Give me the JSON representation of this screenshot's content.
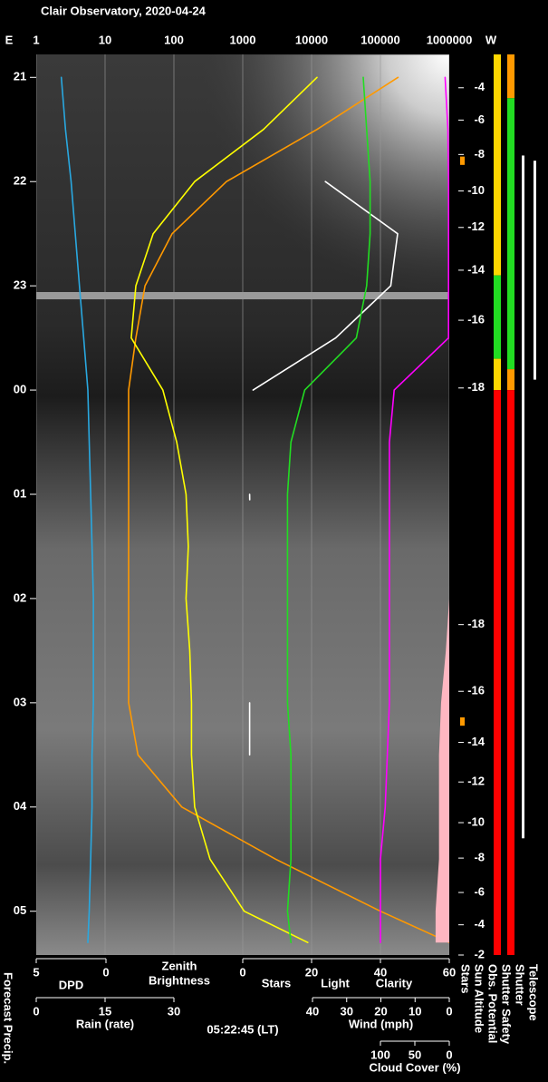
{
  "chart_data": {
    "type": "keogram",
    "title": "Clair Observatory, 2020-04-24",
    "time_label": "05:22:45 (LT)",
    "east_label": "E",
    "west_label": "W",
    "ylim": [
      20.78,
      29.42
    ],
    "yticks": [
      21,
      22,
      23,
      {
        "value": 24,
        "label": "00"
      },
      {
        "value": 25,
        "label": "01"
      },
      {
        "value": 26,
        "label": "02"
      },
      {
        "value": 27,
        "label": "03"
      },
      {
        "value": 28,
        "label": "04"
      },
      {
        "value": 29,
        "label": "05"
      }
    ],
    "x": [
      21,
      21.5,
      22,
      22.5,
      23,
      23.5,
      24,
      24.5,
      25,
      25.5,
      26,
      26.5,
      27,
      27.5,
      28,
      28.5,
      29,
      29.3
    ],
    "axes": {
      "brightness": {
        "scale": "log",
        "xlim": [
          1,
          1000000
        ],
        "xticks": [
          1,
          10,
          100,
          1000,
          10000,
          100000,
          1000000
        ],
        "grid": true,
        "label": [
          "Zenith",
          "Brightness"
        ],
        "color": "#ffff00"
      },
      "dpd": {
        "xlim": [
          5,
          0
        ],
        "xticks": [
          5,
          0
        ],
        "label": "DPD",
        "color": "#29a8e0"
      },
      "stars": {
        "xlim": [
          0,
          60
        ],
        "xticks": [
          0,
          20,
          40,
          60
        ],
        "labels": [
          {
            "text": "Stars",
            "color": "#ffffff"
          },
          {
            "text": "Light",
            "color": "#ffff00"
          },
          {
            "text": "Clarity",
            "color": "#22dd22"
          }
        ]
      },
      "rain": {
        "xlim": [
          0,
          30
        ],
        "xticks": [
          0,
          15,
          30
        ],
        "label": "Rain (rate)",
        "color": "#29c8e8"
      },
      "wind": {
        "xlim": [
          40,
          0
        ],
        "xticks": [
          40,
          30,
          20,
          10,
          0
        ],
        "label": "Wind (mph)",
        "color": "#ffb6c1"
      },
      "cloud": {
        "xlim": [
          100,
          0
        ],
        "xticks": [
          100,
          50,
          0
        ],
        "label": "Cloud Cover (%)",
        "color": "#ff00ff"
      }
    },
    "series": [
      {
        "axis": "dpd",
        "color": "#29a8e0",
        "values": [
          3.2,
          2.9,
          2.5,
          2.2,
          1.9,
          1.6,
          1.3,
          1.2,
          1.1,
          1.0,
          0.9,
          0.9,
          0.9,
          1.0,
          1.0,
          1.1,
          1.2,
          1.3
        ]
      },
      {
        "axis": "brightness",
        "color": "#ff9900",
        "values": [
          180000,
          12000,
          580,
          94,
          38,
          28,
          22,
          22,
          22,
          22,
          22,
          22,
          22,
          30,
          130,
          3000,
          100000,
          1000000
        ]
      },
      {
        "axis": "brightness",
        "color": "#ffff00",
        "values": [
          12000,
          2000,
          200,
          50,
          28,
          24,
          69,
          110,
          150,
          162,
          150,
          170,
          180,
          180,
          200,
          335,
          1050,
          8800
        ]
      },
      {
        "axis": "stars",
        "color": "#ffffff",
        "values": [
          null,
          null,
          24,
          45,
          43,
          27,
          3,
          null,
          2,
          null,
          null,
          null,
          2,
          2,
          null,
          null,
          null,
          null
        ]
      },
      {
        "axis": "stars",
        "color": "#22dd22",
        "values": [
          35,
          36,
          37,
          37,
          36,
          33,
          18,
          14,
          13,
          13,
          13,
          13,
          13,
          14,
          14,
          14,
          13,
          14
        ]
      },
      {
        "axis": "cloud",
        "color": "#ff00ff",
        "values": [
          6,
          2,
          1,
          1,
          1,
          1,
          80,
          87,
          87,
          87,
          87,
          87,
          87,
          90,
          93,
          100,
          100,
          100
        ]
      },
      {
        "axis": "wind",
        "color": "#ffb6c1",
        "area": true,
        "values": [
          0,
          0,
          0,
          0,
          0,
          0,
          0,
          0,
          0,
          0,
          0,
          1,
          2.4,
          3,
          3,
          3,
          4,
          4
        ]
      }
    ],
    "sun_altitude": {
      "label": "Sun Altitude",
      "times": [
        21.1,
        21.41,
        21.74,
        22.09,
        22.44,
        22.85,
        23.33,
        23.98,
        26.25,
        26.89,
        27.38,
        27.76,
        28.15,
        28.49,
        28.82,
        29.13,
        29.42
      ],
      "values": [
        -4,
        -6,
        -8,
        -10,
        -12,
        -14,
        -16,
        -18,
        -18,
        -16,
        -14,
        -12,
        -10,
        -8,
        -6,
        -4,
        -2
      ]
    },
    "precip_label": "Forecast Precip.",
    "status": [
      {
        "label": "Stars",
        "segments": [
          {
            "from": 21.76,
            "to": 21.84,
            "color": "#ff9900"
          },
          {
            "from": 27.14,
            "to": 27.22,
            "color": "#ff9900"
          }
        ]
      },
      {
        "label": "Obs. Potential",
        "segments": [
          {
            "from": 20.78,
            "to": 22.9,
            "color": "#ffd700"
          },
          {
            "from": 22.9,
            "to": 23.7,
            "color": "#22dd22"
          },
          {
            "from": 23.7,
            "to": 24.0,
            "color": "#ffd700"
          },
          {
            "from": 24.0,
            "to": 29.42,
            "color": "#ff0000"
          }
        ]
      },
      {
        "label": "Shutter Safety",
        "segments": [
          {
            "from": 20.78,
            "to": 21.2,
            "color": "#ff9900"
          },
          {
            "from": 21.2,
            "to": 23.8,
            "color": "#22dd22"
          },
          {
            "from": 23.8,
            "to": 24.0,
            "color": "#ff9900"
          },
          {
            "from": 24.0,
            "to": 29.42,
            "color": "#ff0000"
          }
        ]
      },
      {
        "label": "Shutter",
        "segments": [
          {
            "from": 21.75,
            "to": 28.3,
            "color": "#ffffff"
          }
        ]
      },
      {
        "label": "Telescope",
        "segments": [
          {
            "from": 21.8,
            "to": 23.9,
            "color": "#ffffff"
          }
        ]
      }
    ]
  }
}
